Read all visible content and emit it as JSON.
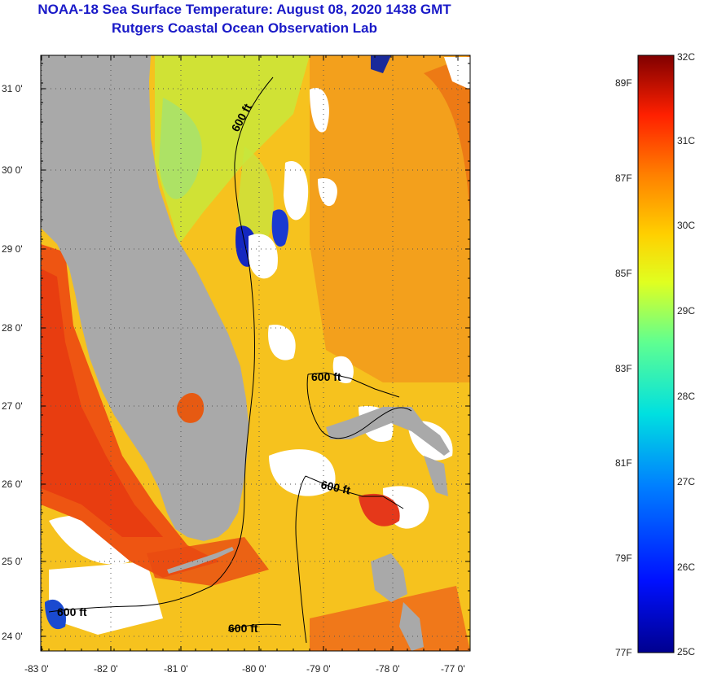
{
  "header": {
    "title": "NOAA-18 Sea Surface Temperature:  August 08, 2020 1438 GMT",
    "subtitle": "Rutgers Coastal Ocean Observation Lab"
  },
  "axes": {
    "lat_labels": [
      "31 0'",
      "30 0'",
      "29 0'",
      "28 0'",
      "27 0'",
      "26 0'",
      "25 0'",
      "24 0'"
    ],
    "lon_labels": [
      "-83 0'",
      "-82 0'",
      "-81 0'",
      "-80 0'",
      "-79 0'",
      "-78 0'",
      "-77 0'"
    ]
  },
  "contours": {
    "label": "600 ft"
  },
  "colorbar": {
    "celsius_labels": [
      "32C",
      "31C",
      "30C",
      "29C",
      "28C",
      "27C",
      "26C",
      "25C"
    ],
    "fahrenheit_labels": [
      "89F",
      "87F",
      "85F",
      "83F",
      "81F",
      "79F",
      "77F"
    ],
    "range_c": [
      25,
      32
    ]
  },
  "colors": {
    "title": "#1a1ac8",
    "land": "#a9a9a9",
    "cloud": "#ffffff"
  }
}
